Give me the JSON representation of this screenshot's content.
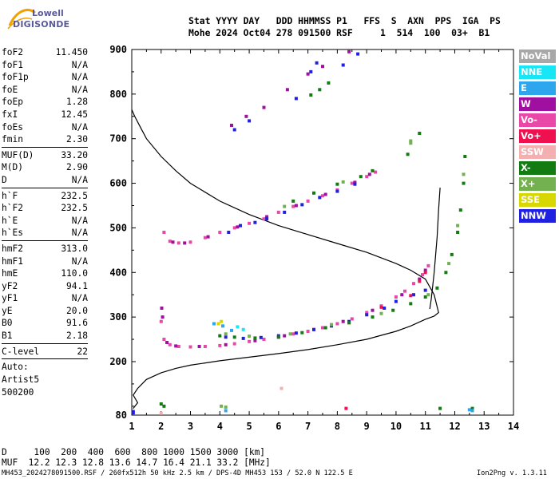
{
  "logo": {
    "line1": "Lowell",
    "line2": "DIGISONDE"
  },
  "header": {
    "line1": "Stat YYYY DAY   DDD HHMMSS P1   FFS  S  AXN  PPS  IGA  PS",
    "line2": "Mohe 2024 Oct04 278 091500 RSF     1  514  100  03+  B1"
  },
  "params": {
    "group1": [
      {
        "k": "foF2",
        "v": "11.450"
      },
      {
        "k": "foF1",
        "v": "N/A"
      },
      {
        "k": "foF1p",
        "v": "N/A"
      },
      {
        "k": "foE",
        "v": "N/A"
      },
      {
        "k": "foEp",
        "v": "1.28"
      },
      {
        "k": "fxI",
        "v": "12.45"
      },
      {
        "k": "foEs",
        "v": "N/A"
      },
      {
        "k": "fmin",
        "v": "2.30"
      }
    ],
    "group2": [
      {
        "k": "MUF(D)",
        "v": "33.20"
      },
      {
        "k": "M(D)",
        "v": "2.90"
      },
      {
        "k": "D",
        "v": "N/A"
      }
    ],
    "group3": [
      {
        "k": "h`F",
        "v": "232.5"
      },
      {
        "k": "h`F2",
        "v": "232.5"
      },
      {
        "k": "h`E",
        "v": "N/A"
      },
      {
        "k": "h`Es",
        "v": "N/A"
      }
    ],
    "group4": [
      {
        "k": "hmF2",
        "v": "313.0"
      },
      {
        "k": "hmF1",
        "v": "N/A"
      },
      {
        "k": "hmE",
        "v": "110.0"
      },
      {
        "k": "yF2",
        "v": "94.1"
      },
      {
        "k": "yF1",
        "v": "N/A"
      },
      {
        "k": "yE",
        "v": "20.0"
      },
      {
        "k": "B0",
        "v": "91.6"
      },
      {
        "k": "B1",
        "v": "2.18"
      }
    ],
    "group5": [
      {
        "k": "C-level",
        "v": "22"
      }
    ],
    "auto": [
      "Auto:",
      "Artist5",
      "500200"
    ]
  },
  "legend": [
    {
      "label": "NoVal",
      "color": "#a8a8a8"
    },
    {
      "label": "NNE",
      "color": "#18e6f5"
    },
    {
      "label": "E",
      "color": "#2ea6ee"
    },
    {
      "label": "W",
      "color": "#a010a0"
    },
    {
      "label": "Vo-",
      "color": "#ea48a8"
    },
    {
      "label": "Vo+",
      "color": "#ef1050"
    },
    {
      "label": "SSW",
      "color": "#f4b0b0"
    },
    {
      "label": "X-",
      "color": "#127c12"
    },
    {
      "label": "X+",
      "color": "#72b050"
    },
    {
      "label": "SSE",
      "color": "#d8d800"
    },
    {
      "label": "NNW",
      "color": "#2020e0"
    }
  ],
  "muf_table": {
    "d_row": "D     100  200  400  600  800 1000 1500 3000 [km]",
    "muf_row": "MUF  12.2 12.3 12.8 13.6 14.7 16.4 21.1 33.2 [MHz]"
  },
  "footer": {
    "left": "MH453_2024278091500.RSF / 260fx512h 50 kHz 2.5 km / DPS-4D MH453 153 / 52.0 N 122.5 E",
    "right": "Ion2Png v. 1.3.11"
  },
  "chart_data": {
    "type": "scatter",
    "xlim": [
      1,
      14
    ],
    "ylim": [
      80,
      900
    ],
    "xticks": [
      "1",
      "2",
      "3",
      "4",
      "5",
      "6",
      "7",
      "8",
      "9",
      "10",
      "11",
      "12",
      "13",
      "14"
    ],
    "yticks": [
      "80",
      "200",
      "300",
      "400",
      "500",
      "600",
      "700",
      "800",
      "900"
    ],
    "grid": false,
    "profile_curve": {
      "x": [
        1.0,
        1.1,
        1.3,
        1.5,
        2.0,
        2.5,
        3.0,
        4.0,
        5.0,
        6.0,
        7.0,
        8.0,
        9.0,
        10.0,
        10.5,
        11.0,
        11.3,
        11.45,
        11.3,
        11.0,
        10.5,
        10.0,
        9.0,
        8.0,
        7.0,
        6.0,
        5.0,
        4.0,
        3.0,
        2.5,
        2.0,
        1.5,
        1.2,
        1.05,
        1.2,
        1.05
      ],
      "y": [
        765,
        750,
        725,
        700,
        660,
        628,
        600,
        560,
        530,
        505,
        485,
        465,
        445,
        420,
        405,
        385,
        350,
        310,
        302,
        295,
        280,
        268,
        250,
        238,
        227,
        218,
        210,
        202,
        192,
        185,
        175,
        160,
        140,
        125,
        108,
        95
      ]
    },
    "extension_curve": {
      "x": [
        11.15,
        11.2,
        11.3,
        11.4,
        11.45,
        11.5
      ],
      "y": [
        318,
        340,
        400,
        480,
        540,
        590
      ]
    },
    "series": [
      {
        "name": "Vo-",
        "color": "#ea48a8",
        "points": [
          [
            2.0,
            290
          ],
          [
            2.1,
            250
          ],
          [
            2.3,
            238
          ],
          [
            2.6,
            234
          ],
          [
            3.0,
            233
          ],
          [
            3.5,
            234
          ],
          [
            4.0,
            236
          ],
          [
            4.5,
            240
          ],
          [
            5.0,
            245
          ],
          [
            5.5,
            250
          ],
          [
            6.0,
            255
          ],
          [
            6.5,
            262
          ],
          [
            7.0,
            268
          ],
          [
            7.5,
            276
          ],
          [
            8.0,
            285
          ],
          [
            8.5,
            296
          ],
          [
            9.0,
            310
          ],
          [
            9.5,
            325
          ],
          [
            10.0,
            345
          ],
          [
            10.3,
            358
          ],
          [
            10.6,
            375
          ],
          [
            10.9,
            395
          ],
          [
            11.1,
            415
          ],
          [
            2.1,
            490
          ],
          [
            2.3,
            470
          ],
          [
            2.6,
            466
          ],
          [
            3.0,
            468
          ],
          [
            3.5,
            478
          ],
          [
            4.0,
            490
          ],
          [
            4.5,
            500
          ],
          [
            5.0,
            510
          ],
          [
            5.5,
            520
          ],
          [
            6.0,
            535
          ],
          [
            6.5,
            548
          ],
          [
            7.0,
            560
          ],
          [
            7.5,
            572
          ],
          [
            8.0,
            585
          ],
          [
            8.5,
            600
          ],
          [
            9.0,
            615
          ],
          [
            9.3,
            625
          ]
        ]
      },
      {
        "name": "W",
        "color": "#a010a0",
        "points": [
          [
            2.02,
            320
          ],
          [
            2.05,
            300
          ],
          [
            2.2,
            243
          ],
          [
            2.5,
            235
          ],
          [
            3.3,
            234
          ],
          [
            4.2,
            238
          ],
          [
            5.2,
            247
          ],
          [
            6.2,
            258
          ],
          [
            7.2,
            272
          ],
          [
            8.2,
            290
          ],
          [
            9.2,
            315
          ],
          [
            10.2,
            350
          ],
          [
            10.8,
            385
          ],
          [
            11.0,
            405
          ],
          [
            2.4,
            468
          ],
          [
            2.8,
            466
          ],
          [
            3.6,
            480
          ],
          [
            4.6,
            502
          ],
          [
            5.6,
            525
          ],
          [
            6.6,
            550
          ],
          [
            7.6,
            575
          ],
          [
            8.6,
            602
          ],
          [
            9.1,
            620
          ],
          [
            4.4,
            730
          ],
          [
            4.9,
            750
          ],
          [
            5.5,
            770
          ],
          [
            6.3,
            810
          ],
          [
            7.0,
            845
          ],
          [
            7.5,
            862
          ],
          [
            8.4,
            895
          ]
        ]
      },
      {
        "name": "NNW",
        "color": "#2020e0",
        "points": [
          [
            4.2,
            255
          ],
          [
            4.8,
            252
          ],
          [
            5.4,
            254
          ],
          [
            6.0,
            258
          ],
          [
            6.6,
            264
          ],
          [
            7.2,
            272
          ],
          [
            7.8,
            280
          ],
          [
            8.4,
            290
          ],
          [
            9.0,
            305
          ],
          [
            9.6,
            320
          ],
          [
            10.0,
            335
          ],
          [
            10.6,
            350
          ],
          [
            11.0,
            360
          ],
          [
            4.3,
            490
          ],
          [
            4.7,
            505
          ],
          [
            5.2,
            512
          ],
          [
            5.6,
            520
          ],
          [
            6.2,
            535
          ],
          [
            6.8,
            552
          ],
          [
            7.4,
            568
          ],
          [
            8.0,
            582
          ],
          [
            8.6,
            598
          ],
          [
            4.5,
            720
          ],
          [
            5.0,
            740
          ],
          [
            6.6,
            790
          ],
          [
            7.1,
            850
          ],
          [
            7.3,
            870
          ],
          [
            8.2,
            865
          ],
          [
            8.7,
            890
          ],
          [
            1.05,
            85
          ],
          [
            1.05,
            88
          ]
        ]
      },
      {
        "name": "X-",
        "color": "#127c12",
        "points": [
          [
            4.0,
            258
          ],
          [
            4.5,
            255
          ],
          [
            5.2,
            253
          ],
          [
            6.0,
            255
          ],
          [
            6.8,
            265
          ],
          [
            7.6,
            276
          ],
          [
            8.4,
            287
          ],
          [
            9.2,
            300
          ],
          [
            9.9,
            315
          ],
          [
            10.5,
            330
          ],
          [
            11.0,
            345
          ],
          [
            11.4,
            365
          ],
          [
            11.7,
            400
          ],
          [
            11.9,
            440
          ],
          [
            12.1,
            490
          ],
          [
            12.2,
            540
          ],
          [
            12.3,
            600
          ],
          [
            12.35,
            660
          ],
          [
            6.5,
            560
          ],
          [
            7.2,
            578
          ],
          [
            8.0,
            598
          ],
          [
            8.8,
            615
          ],
          [
            9.2,
            628
          ],
          [
            7.1,
            798
          ],
          [
            7.4,
            810
          ],
          [
            7.7,
            825
          ],
          [
            10.4,
            665
          ],
          [
            10.8,
            712
          ],
          [
            2.0,
            105
          ],
          [
            2.1,
            100
          ],
          [
            11.5,
            95
          ],
          [
            12.6,
            95
          ]
        ]
      },
      {
        "name": "X+",
        "color": "#72b050",
        "points": [
          [
            4.2,
            262
          ],
          [
            5.0,
            257
          ],
          [
            6.4,
            262
          ],
          [
            7.8,
            283
          ],
          [
            9.5,
            308
          ],
          [
            11.1,
            350
          ],
          [
            11.8,
            420
          ],
          [
            12.1,
            505
          ],
          [
            12.3,
            620
          ],
          [
            6.2,
            548
          ],
          [
            8.2,
            603
          ],
          [
            10.5,
            690
          ],
          [
            10.5,
            695
          ],
          [
            4.05,
            100
          ],
          [
            4.2,
            98
          ]
        ]
      },
      {
        "name": "E",
        "color": "#2ea6ee",
        "points": [
          [
            3.8,
            285
          ],
          [
            4.1,
            280
          ],
          [
            4.4,
            270
          ],
          [
            12.5,
            92
          ],
          [
            12.6,
            90
          ],
          [
            4.2,
            90
          ]
        ]
      },
      {
        "name": "NNE",
        "color": "#18e6f5",
        "points": [
          [
            4.6,
            278
          ],
          [
            4.8,
            272
          ]
        ]
      },
      {
        "name": "SSE",
        "color": "#d8d800",
        "points": [
          [
            3.95,
            285
          ],
          [
            4.05,
            290
          ]
        ]
      },
      {
        "name": "SSW",
        "color": "#f4b0b0",
        "points": [
          [
            6.1,
            140
          ],
          [
            2.0,
            84
          ]
        ]
      },
      {
        "name": "Vo+",
        "color": "#ef1050",
        "points": [
          [
            10.5,
            348
          ],
          [
            10.8,
            380
          ],
          [
            11.0,
            400
          ],
          [
            9.5,
            322
          ],
          [
            8.3,
            95
          ]
        ]
      }
    ]
  }
}
